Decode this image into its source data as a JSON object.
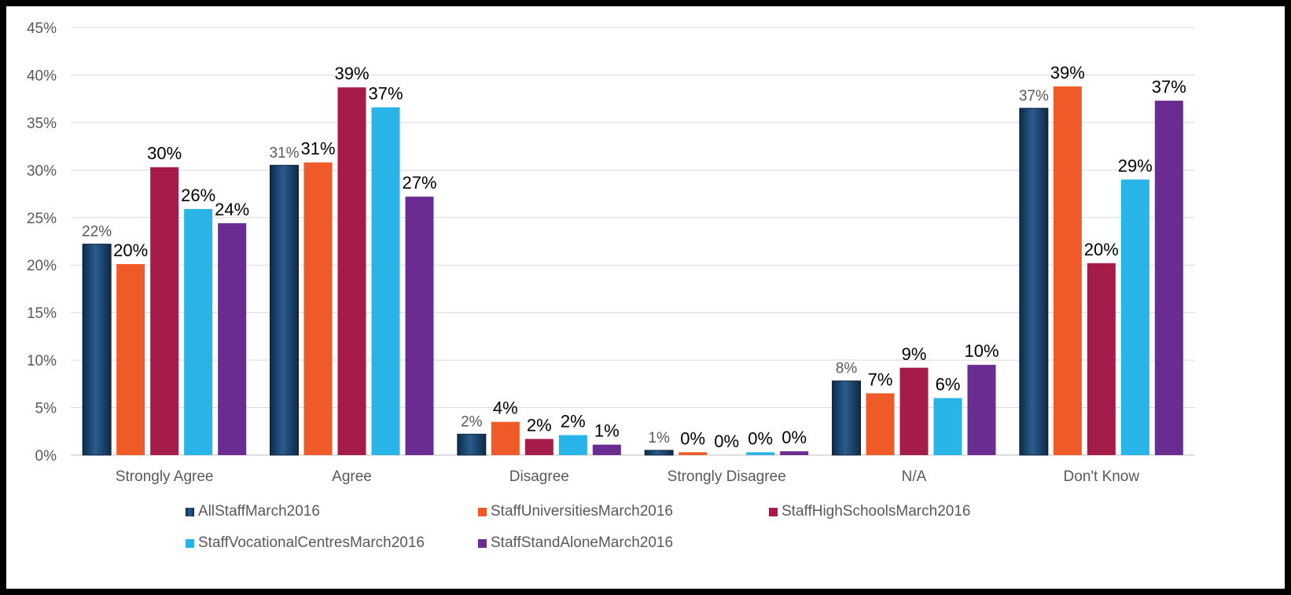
{
  "chart_data": {
    "type": "bar",
    "categories": [
      "Strongly Agree",
      "Agree",
      "Disagree",
      "Strongly Disagree",
      "N/A",
      "Don't Know"
    ],
    "ylim": [
      0,
      45
    ],
    "yticks": [
      "0%",
      "5%",
      "10%",
      "15%",
      "20%",
      "25%",
      "30%",
      "35%",
      "40%",
      "45%"
    ],
    "grid": true,
    "legend_position": "bottom",
    "series": [
      {
        "name": "AllStaffMarch2016",
        "color": "#1F4E79",
        "values": [
          22.2,
          30.5,
          2.2,
          0.5,
          7.8,
          36.5
        ],
        "labels": [
          "22%",
          "31%",
          "2%",
          "1%",
          "8%",
          "37%"
        ]
      },
      {
        "name": "StaffUniversitiesMarch2016",
        "color": "#F05A28",
        "values": [
          20.1,
          30.8,
          3.5,
          0.3,
          6.5,
          38.8
        ],
        "labels": [
          "20%",
          "31%",
          "4%",
          "0%",
          "7%",
          "39%"
        ]
      },
      {
        "name": "StaffHighSchoolsMarch2016",
        "color": "#A51C4A",
        "values": [
          30.3,
          38.7,
          1.7,
          0.0,
          9.2,
          20.2
        ],
        "labels": [
          "30%",
          "39%",
          "2%",
          "0%",
          "9%",
          "20%"
        ]
      },
      {
        "name": "StaffVocationalCentresMarch2016",
        "color": "#29B4E8",
        "values": [
          25.9,
          36.6,
          2.1,
          0.3,
          6.0,
          29.0
        ],
        "labels": [
          "26%",
          "37%",
          "2%",
          "0%",
          "6%",
          "29%"
        ]
      },
      {
        "name": "StaffStandAloneMarch2016",
        "color": "#6A2C91",
        "values": [
          24.4,
          27.2,
          1.1,
          0.4,
          9.5,
          37.3
        ],
        "labels": [
          "24%",
          "27%",
          "1%",
          "0%",
          "10%",
          "37%"
        ]
      }
    ]
  }
}
